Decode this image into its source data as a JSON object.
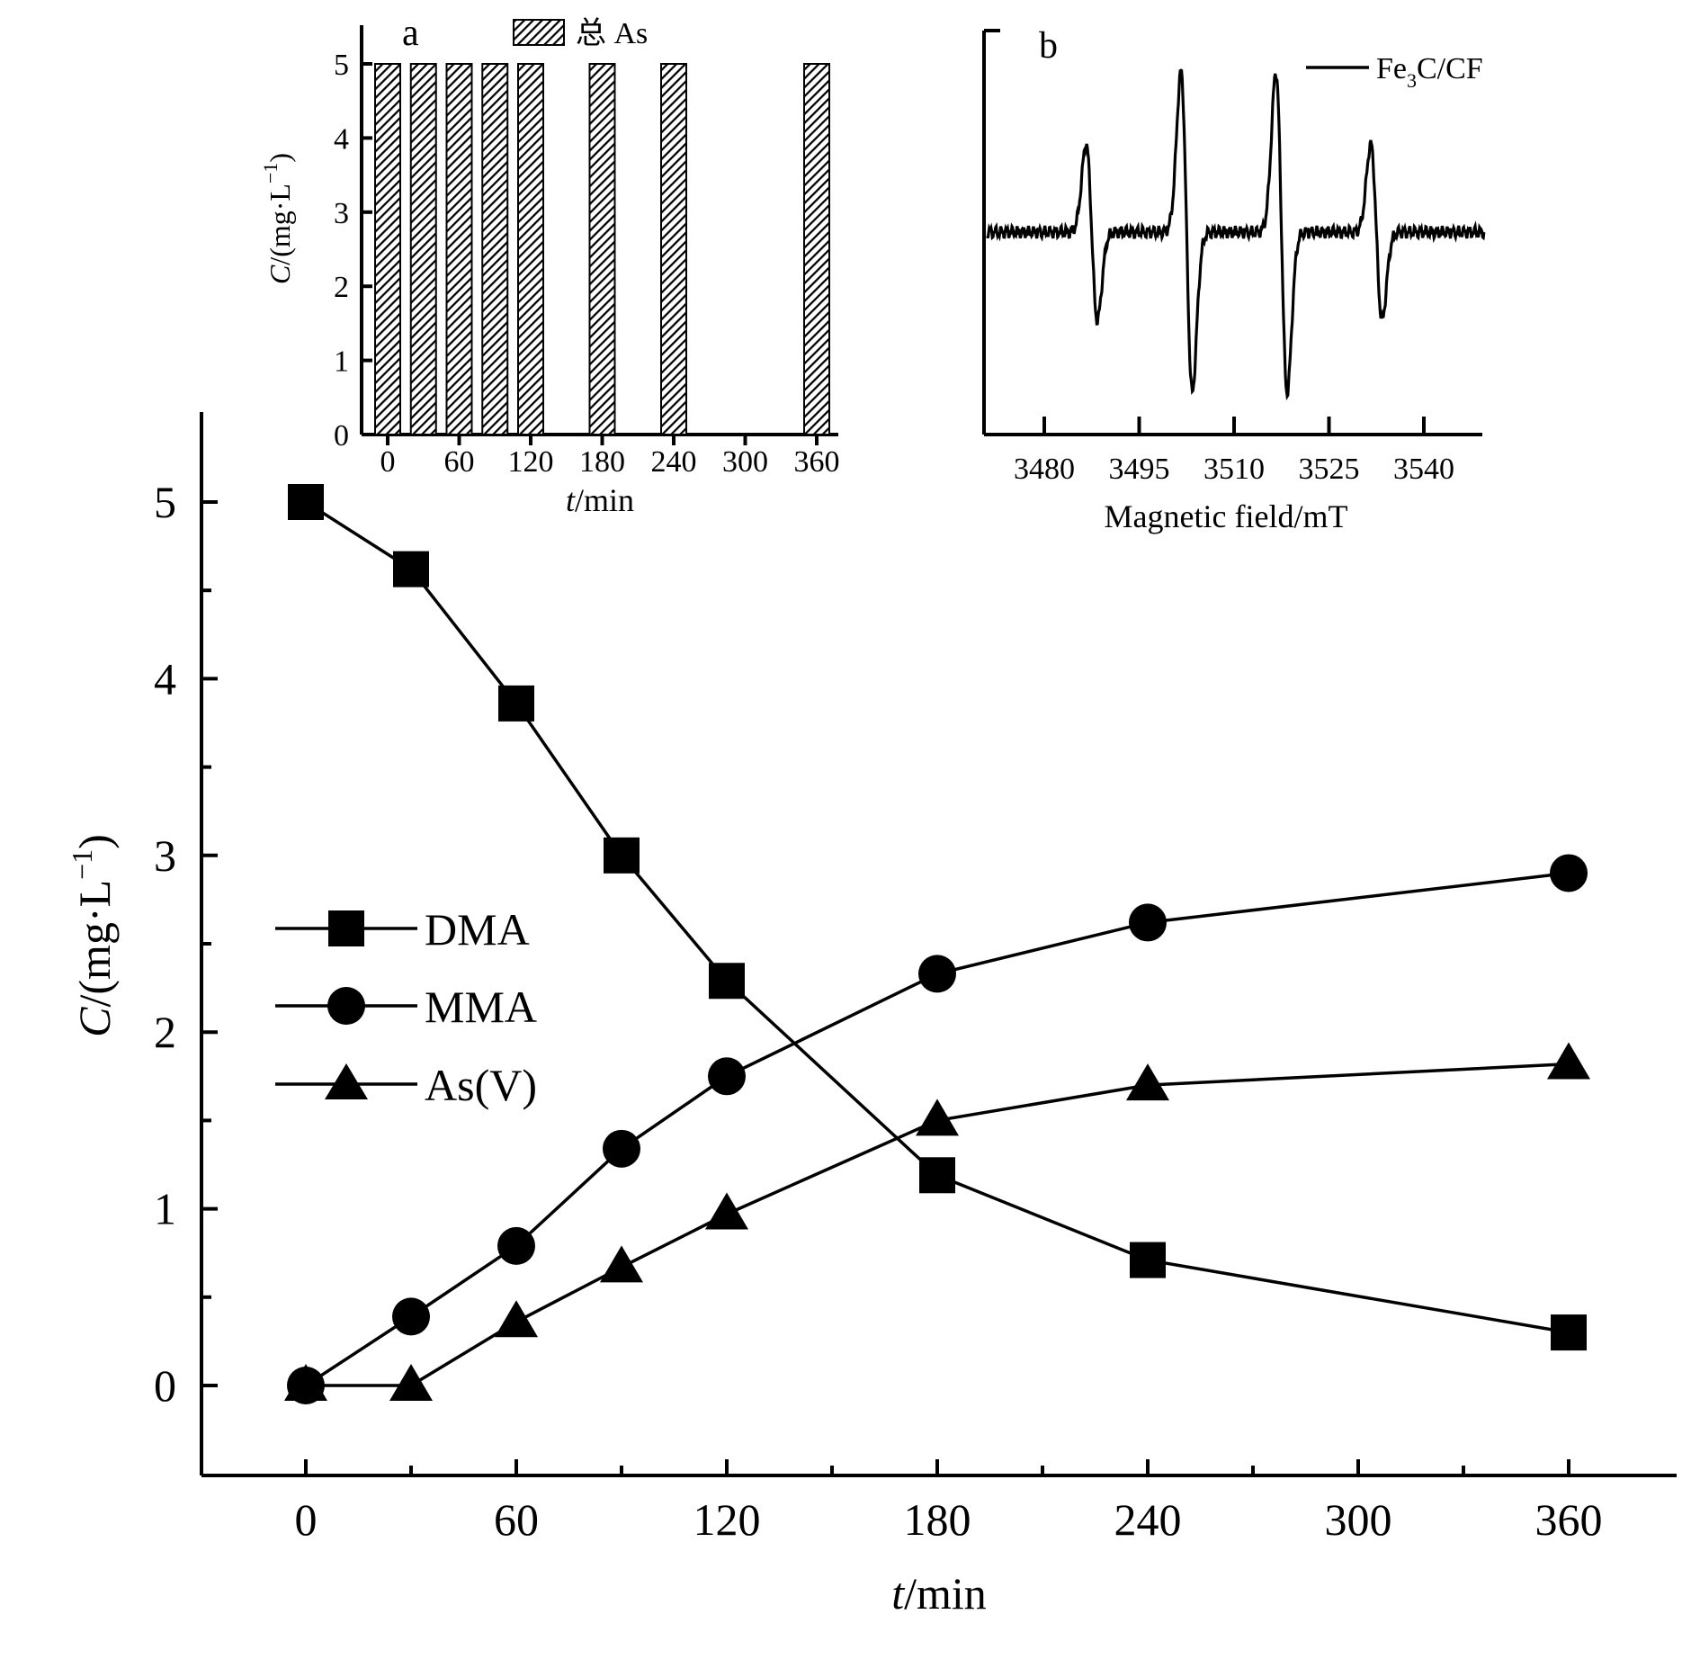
{
  "chart_data": [
    {
      "id": "main",
      "type": "line",
      "title": "",
      "xlabel_italic": "t",
      "xlabel_rest": "/min",
      "ylabel_italic": "C",
      "ylabel_rest": "/(mg·L",
      "ylabel_sup": "−1",
      "ylabel_close": ")",
      "xlim": [
        -25,
        385
      ],
      "ylim": [
        -0.5,
        5.5
      ],
      "xticks": [
        0,
        60,
        120,
        180,
        240,
        300,
        360
      ],
      "xticks_minor": [
        30,
        90,
        150,
        210,
        270,
        330
      ],
      "yticks": [
        0,
        1,
        2,
        3,
        4,
        5
      ],
      "yticks_minor": [
        0.5,
        1.5,
        2.5,
        3.5,
        4.5
      ],
      "legend_position": "center-left",
      "series": [
        {
          "name": "DMA",
          "marker": "square",
          "x": [
            0,
            30,
            60,
            90,
            120,
            180,
            240,
            360
          ],
          "values": [
            5.0,
            4.62,
            3.86,
            3.0,
            2.29,
            1.19,
            0.71,
            0.3
          ]
        },
        {
          "name": "MMA",
          "marker": "circle",
          "x": [
            0,
            30,
            60,
            90,
            120,
            180,
            240,
            360
          ],
          "values": [
            0.0,
            0.39,
            0.79,
            1.34,
            1.75,
            2.33,
            2.62,
            2.9
          ]
        },
        {
          "name": "As(V)",
          "marker": "triangle",
          "x": [
            0,
            30,
            60,
            90,
            120,
            180,
            240,
            360
          ],
          "values": [
            0.0,
            0.0,
            0.36,
            0.67,
            0.97,
            1.5,
            1.7,
            1.82
          ]
        }
      ]
    },
    {
      "id": "inset-a",
      "panel_label": "a",
      "type": "bar",
      "title": "",
      "xlabel_italic": "t",
      "xlabel_rest": "/min",
      "ylabel_italic": "C",
      "ylabel_rest": "/(mg·L",
      "ylabel_sup": "−1",
      "ylabel_close": ")",
      "xlim": [
        -15,
        375
      ],
      "ylim": [
        0,
        5.3
      ],
      "xticks": [
        0,
        60,
        120,
        180,
        240,
        300,
        360
      ],
      "yticks": [
        0,
        1,
        2,
        3,
        4,
        5
      ],
      "legend": "总 As",
      "legend_position": "top",
      "series": [
        {
          "name": "总 As",
          "x": [
            0,
            30,
            60,
            90,
            120,
            180,
            240,
            360
          ],
          "values": [
            5,
            5,
            5,
            5,
            5,
            5,
            5,
            5
          ]
        }
      ]
    },
    {
      "id": "inset-b",
      "panel_label": "b",
      "type": "line",
      "title": "",
      "xlabel": "Magnetic field/mT",
      "ylabel": "",
      "xlim": [
        3470,
        3550
      ],
      "xticks": [
        3480,
        3495,
        3510,
        3525,
        3540
      ],
      "legend_name": "Fe",
      "legend_sub": "3",
      "legend_rest": "C/CF",
      "legend_position": "top-right",
      "baseline": 0,
      "peaks": [
        {
          "center": 3487.5,
          "amplitude": 0.55
        },
        {
          "center": 3502.5,
          "amplitude": 1.0
        },
        {
          "center": 3517.5,
          "amplitude": 1.0
        },
        {
          "center": 3532.5,
          "amplitude": 0.55
        }
      ]
    }
  ]
}
